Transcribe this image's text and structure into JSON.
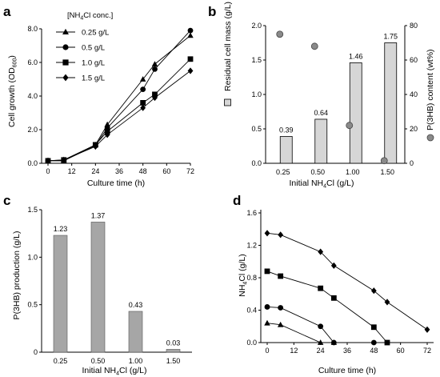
{
  "figure": {
    "panel_letters": [
      "a",
      "b",
      "c",
      "d"
    ]
  },
  "chart_data": [
    {
      "panel": "a",
      "type": "line",
      "xlabel": "Culture time (h)",
      "ylabel_main": "Cell growth (OD",
      "ylabel_sub": "600",
      "ylabel_end": ")",
      "legend_title_pre": "[NH",
      "legend_title_sub": "4",
      "legend_title_post": "Cl conc.]",
      "xlim": [
        0,
        72
      ],
      "ylim": [
        0,
        8
      ],
      "xticks": [
        "0",
        "12",
        "24",
        "36",
        "48",
        "60",
        "72"
      ],
      "yticks": [
        "0.0",
        "2.0",
        "4.0",
        "6.0",
        "8.0"
      ],
      "xtick_values": [
        0,
        12,
        24,
        36,
        48,
        60,
        72
      ],
      "ytick_values": [
        0,
        2,
        4,
        6,
        8
      ],
      "x": [
        0,
        8,
        24,
        30,
        48,
        54,
        72
      ],
      "series": [
        {
          "name": "0.25 g/L",
          "marker": "triangle",
          "values": [
            0.15,
            0.15,
            1.1,
            2.3,
            5.0,
            5.9,
            7.6
          ]
        },
        {
          "name": "0.5 g/L",
          "marker": "circle",
          "values": [
            0.15,
            0.15,
            1.05,
            2.1,
            4.4,
            5.6,
            7.9
          ]
        },
        {
          "name": "1.0 g/L",
          "marker": "square",
          "values": [
            0.15,
            0.2,
            1.1,
            1.9,
            3.6,
            4.1,
            6.2
          ]
        },
        {
          "name": "1.5 g/L",
          "marker": "diamond",
          "values": [
            0.15,
            0.2,
            1.0,
            1.7,
            3.3,
            3.9,
            5.5
          ]
        }
      ]
    },
    {
      "panel": "b",
      "type": "bar",
      "xlabel_pre": "Initial NH",
      "xlabel_sub": "4",
      "xlabel_post": "Cl (g/L)",
      "ylabel_left": "Residual cell mass (g/L)",
      "ylabel_right": "P(3HB) content (wt%)",
      "categories": [
        "0.25",
        "0.50",
        "1.00",
        "1.50"
      ],
      "ylim_left": [
        0,
        2.0
      ],
      "ylim_right": [
        0,
        80
      ],
      "yticks_left": [
        "0.0",
        "0.5",
        "1.0",
        "1.5",
        "2.0"
      ],
      "ytick_values_left": [
        0,
        0.5,
        1.0,
        1.5,
        2.0
      ],
      "yticks_right": [
        "0",
        "20",
        "40",
        "60",
        "80"
      ],
      "ytick_values_right": [
        0,
        20,
        40,
        60,
        80
      ],
      "bar_values": [
        0.39,
        0.64,
        1.46,
        1.75
      ],
      "bar_labels": [
        "0.39",
        "0.64",
        "1.46",
        "1.75"
      ],
      "point_values": [
        75,
        68,
        22,
        1.5
      ]
    },
    {
      "panel": "c",
      "type": "bar",
      "xlabel_pre": "Initial NH",
      "xlabel_sub": "4",
      "xlabel_post": "Cl (g/L)",
      "ylabel": "P(3HB) production (g/L)",
      "categories": [
        "0.25",
        "0.50",
        "1.00",
        "1.50"
      ],
      "ylim": [
        0,
        1.5
      ],
      "yticks": [
        "0",
        "0.5",
        "1.0",
        "1.5"
      ],
      "ytick_values": [
        0,
        0.5,
        1.0,
        1.5
      ],
      "values": [
        1.23,
        1.37,
        0.43,
        0.03
      ],
      "labels": [
        "1.23",
        "1.37",
        "0.43",
        "0.03"
      ]
    },
    {
      "panel": "d",
      "type": "line",
      "xlabel": "Culture time (h)",
      "ylabel_pre": "NH",
      "ylabel_sub": "4",
      "ylabel_post": "Cl (g/L)",
      "xlim": [
        0,
        72
      ],
      "ylim": [
        0,
        1.6
      ],
      "xticks": [
        "0",
        "12",
        "24",
        "36",
        "48",
        "60",
        "72"
      ],
      "xtick_values": [
        0,
        12,
        24,
        36,
        48,
        60,
        72
      ],
      "yticks": [
        "0.0",
        "0.4",
        "0.8",
        "1.2",
        "1.6"
      ],
      "ytick_values": [
        0,
        0.4,
        0.8,
        1.2,
        1.6
      ],
      "series": [
        {
          "marker": "triangle",
          "x": [
            0,
            6,
            24,
            30
          ],
          "values": [
            0.24,
            0.22,
            0.0,
            0.0
          ]
        },
        {
          "marker": "circle",
          "x": [
            0,
            6,
            24,
            30,
            48
          ],
          "values": [
            0.44,
            0.43,
            0.2,
            0.0,
            0.0
          ]
        },
        {
          "marker": "square",
          "x": [
            0,
            6,
            24,
            30,
            48,
            54
          ],
          "values": [
            0.88,
            0.82,
            0.67,
            0.55,
            0.19,
            0.0
          ]
        },
        {
          "marker": "diamond",
          "x": [
            0,
            6,
            24,
            30,
            48,
            54,
            72
          ],
          "values": [
            1.35,
            1.33,
            1.12,
            0.95,
            0.64,
            0.5,
            0.16
          ]
        }
      ]
    }
  ]
}
